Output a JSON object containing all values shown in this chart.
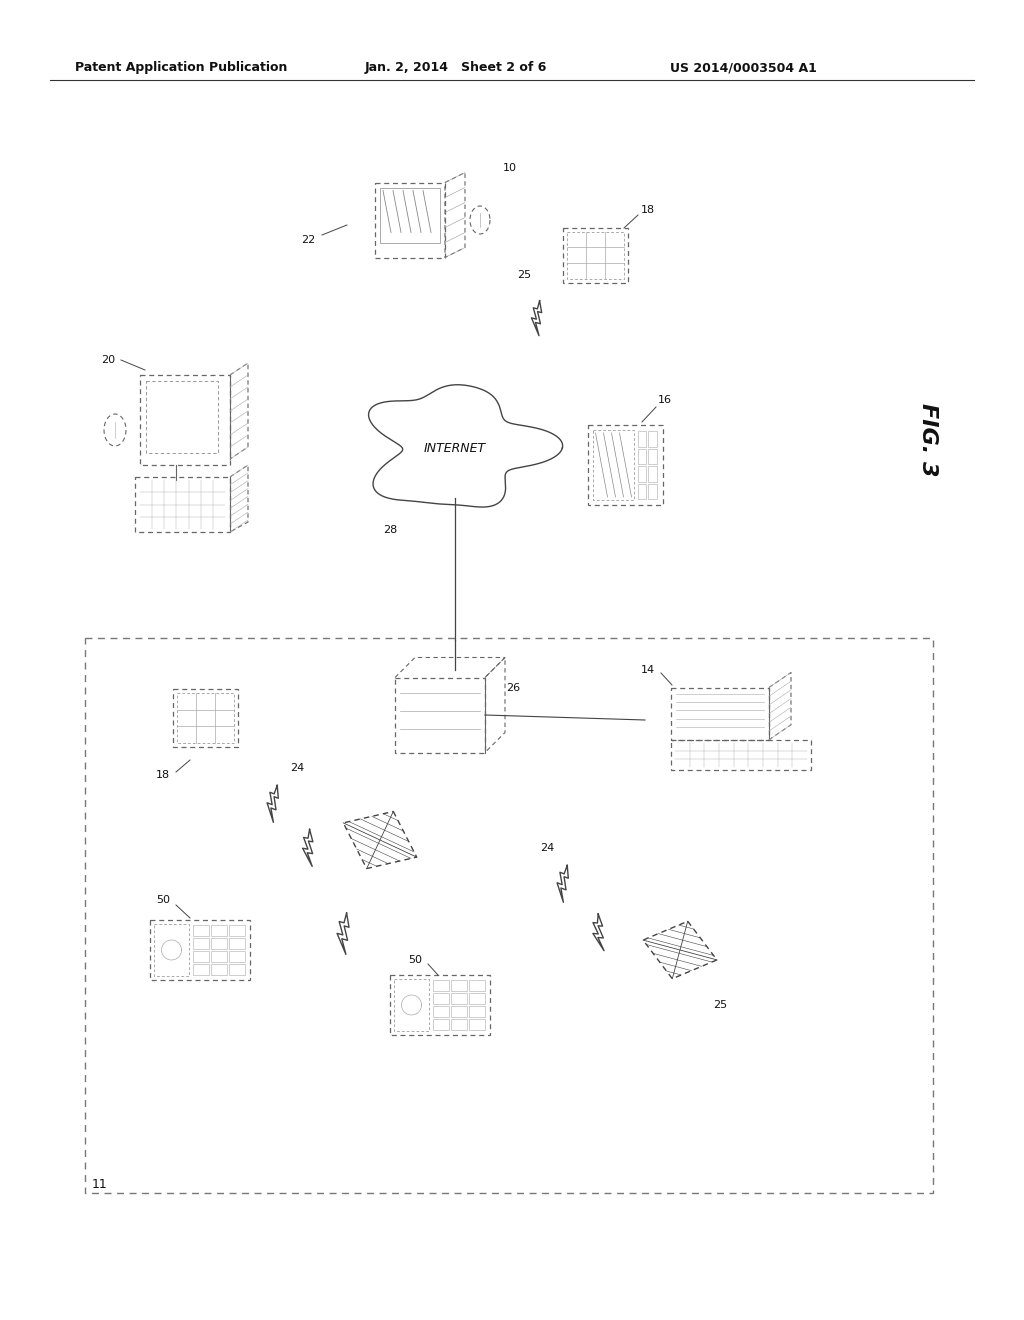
{
  "title_left": "Patent Application Publication",
  "title_mid": "Jan. 2, 2014   Sheet 2 of 6",
  "title_right": "US 2014/0003504 A1",
  "fig_label": "FIG. 3",
  "background_color": "#ffffff"
}
